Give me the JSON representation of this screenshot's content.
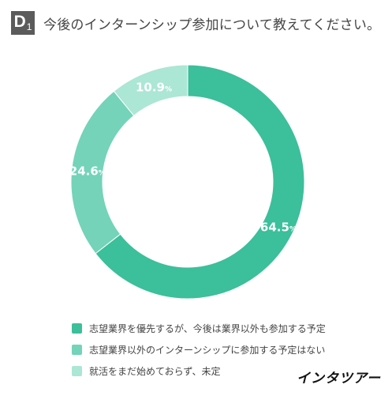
{
  "header": {
    "badge": "D",
    "badge_sub": "1",
    "title": "今後のインターンシップ参加について教えてください。"
  },
  "chart_data": {
    "type": "pie",
    "donut": true,
    "categories": [
      "志望業界を優先するが、今後は業界以外も参加する予定",
      "志望業界以外のインターンシップに参加する予定はない",
      "就活をまだ始めておらず、未定"
    ],
    "values": [
      64.5,
      24.6,
      10.9
    ],
    "value_labels": [
      "64.5",
      "24.6",
      "10.9"
    ],
    "unit": "%",
    "colors": [
      "#3cbf9b",
      "#74d3b9",
      "#ace6d5"
    ],
    "legend_position": "bottom-left"
  },
  "logo": {
    "text": "インタツアー"
  }
}
